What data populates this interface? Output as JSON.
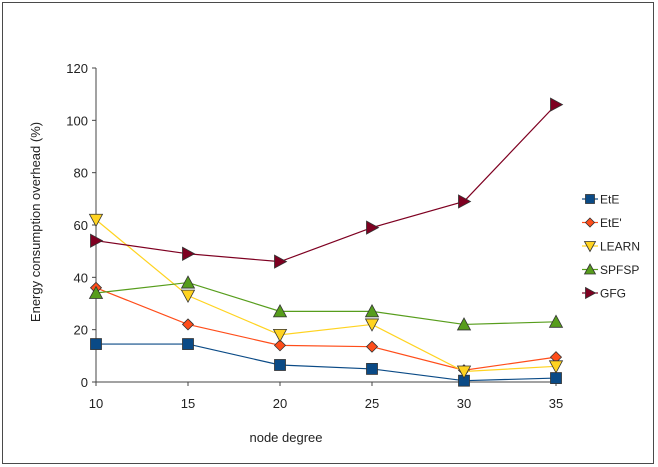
{
  "chart_data": {
    "type": "line",
    "title": "",
    "xlabel": "node degree",
    "ylabel": "Energy consumption overhead (%)",
    "x": [
      10,
      15,
      20,
      25,
      30,
      35
    ],
    "xlim": [
      10,
      35
    ],
    "ylim": [
      0,
      120
    ],
    "x_ticks": [
      "10",
      "15",
      "20",
      "25",
      "30",
      "35"
    ],
    "y_ticks": [
      "0",
      "20",
      "40",
      "60",
      "80",
      "100",
      "120"
    ],
    "grid": false,
    "legend_position": "right",
    "series": [
      {
        "name": "EtE",
        "color": "#0a4a86",
        "marker": "square",
        "values": [
          14.5,
          14.5,
          6.5,
          5,
          0.5,
          1.5
        ]
      },
      {
        "name": "EtE'",
        "color": "#ff4d1a",
        "marker": "diamond",
        "values": [
          36,
          22,
          14,
          13.5,
          4.5,
          9.5
        ]
      },
      {
        "name": "LEARN",
        "color": "#ffd320",
        "marker": "triangle-down",
        "values": [
          62,
          33,
          18,
          22,
          4,
          6
        ]
      },
      {
        "name": "SPFSP",
        "color": "#579d1c",
        "marker": "triangle-up",
        "values": [
          34,
          38,
          27,
          27,
          22,
          23
        ]
      },
      {
        "name": "GFG",
        "color": "#7e0021",
        "marker": "triangle-right",
        "values": [
          54,
          49,
          46,
          59,
          69,
          106
        ]
      }
    ]
  }
}
